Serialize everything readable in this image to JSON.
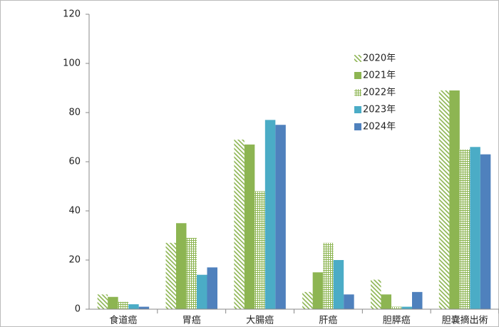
{
  "chart_data": {
    "type": "bar",
    "categories": [
      "食道癌",
      "胃癌",
      "大腸癌",
      "肝癌",
      "胆膵癌",
      "胆嚢摘出術"
    ],
    "series": [
      {
        "name": "2020年",
        "color": "#8db552",
        "pattern": "diagonal",
        "values": [
          6,
          27,
          69,
          7,
          12,
          89
        ]
      },
      {
        "name": "2021年",
        "color": "#8db552",
        "pattern": "solid",
        "values": [
          5,
          35,
          67,
          15,
          6,
          89
        ]
      },
      {
        "name": "2022年",
        "color": "#8db552",
        "pattern": "grid",
        "values": [
          3,
          29,
          48,
          27,
          1,
          65
        ]
      },
      {
        "name": "2023年",
        "color": "#4bacc6",
        "pattern": "solid",
        "values": [
          2,
          14,
          77,
          20,
          1,
          66
        ]
      },
      {
        "name": "2024年",
        "color": "#4f81bd",
        "pattern": "solid",
        "values": [
          1,
          17,
          75,
          6,
          7,
          63
        ]
      }
    ],
    "ylim": [
      0,
      120
    ],
    "yticks": [
      0,
      20,
      40,
      60,
      80,
      100,
      120
    ],
    "grid": false,
    "legend": "upper-right"
  }
}
